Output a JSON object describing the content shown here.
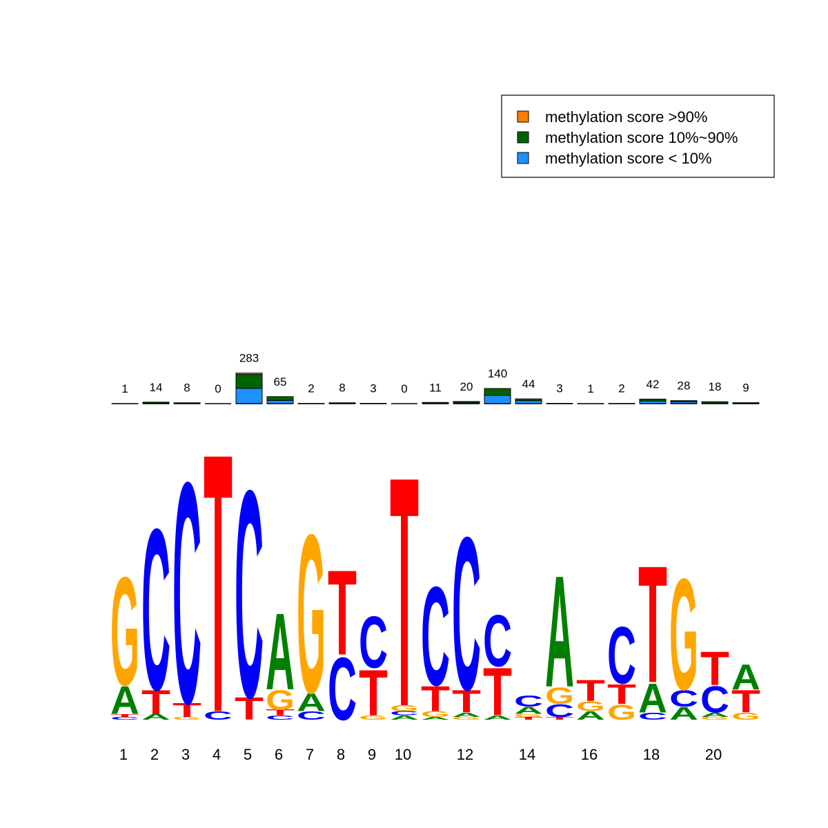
{
  "chart_data": [
    {
      "type": "stacked-bar",
      "legend": "top-right",
      "ylim": [
        0,
        300
      ],
      "totals": [
        1,
        14,
        8,
        0,
        283,
        65,
        2,
        8,
        3,
        0,
        11,
        20,
        140,
        44,
        3,
        1,
        2,
        42,
        28,
        18,
        9
      ],
      "series": [
        {
          "name": "methylation score < 10%",
          "color": "#1e90ff",
          "values": [
            0,
            4,
            3,
            0,
            142,
            30,
            1,
            3,
            1,
            0,
            4,
            8,
            77,
            28,
            1,
            0,
            1,
            25,
            18,
            5,
            3
          ]
        },
        {
          "name": "methylation score 10%~90%",
          "color": "#006400",
          "values": [
            1,
            10,
            5,
            0,
            128,
            35,
            1,
            5,
            2,
            0,
            7,
            12,
            63,
            16,
            2,
            1,
            1,
            17,
            10,
            13,
            6
          ]
        },
        {
          "name": "methylation score >90%",
          "color": "#ff7f00",
          "values": [
            0,
            0,
            0,
            0,
            13,
            0,
            0,
            0,
            0,
            0,
            0,
            0,
            0,
            0,
            0,
            0,
            0,
            0,
            0,
            0,
            0
          ]
        }
      ]
    },
    {
      "type": "logo",
      "ylim": [
        0,
        2
      ],
      "categories": [
        1,
        2,
        3,
        4,
        5,
        6,
        7,
        8,
        9,
        10,
        null,
        12,
        null,
        14,
        null,
        16,
        null,
        18,
        null,
        20,
        null
      ],
      "colors": {
        "A": "#008000",
        "C": "#0000ff",
        "G": "#ffa500",
        "T": "#ff0000"
      },
      "stacks": [
        [
          {
            "letter": "C",
            "value": 0.02
          },
          {
            "letter": "T",
            "value": 0.02
          },
          {
            "letter": "A",
            "value": 0.2
          },
          {
            "letter": "G",
            "value": 0.78
          }
        ],
        [
          {
            "letter": "A",
            "value": 0.04
          },
          {
            "letter": "T",
            "value": 0.17
          },
          {
            "letter": "C",
            "value": 1.16
          }
        ],
        [
          {
            "letter": "G",
            "value": 0.02
          },
          {
            "letter": "T",
            "value": 0.1
          },
          {
            "letter": "C",
            "value": 1.59
          }
        ],
        [
          {
            "letter": "C",
            "value": 0.06
          },
          {
            "letter": "T",
            "value": 1.86
          }
        ],
        [
          {
            "letter": "T",
            "value": 0.16
          },
          {
            "letter": "C",
            "value": 1.49
          }
        ],
        [
          {
            "letter": "C",
            "value": 0.03
          },
          {
            "letter": "T",
            "value": 0.04
          },
          {
            "letter": "G",
            "value": 0.14
          },
          {
            "letter": "A",
            "value": 0.55
          }
        ],
        [
          {
            "letter": "C",
            "value": 0.06
          },
          {
            "letter": "A",
            "value": 0.13
          },
          {
            "letter": "G",
            "value": 1.14
          }
        ],
        [
          {
            "letter": "C",
            "value": 0.45
          },
          {
            "letter": "T",
            "value": 0.61
          }
        ],
        [
          {
            "letter": "G",
            "value": 0.03
          },
          {
            "letter": "T",
            "value": 0.33
          },
          {
            "letter": "C",
            "value": 0.37
          }
        ],
        [
          {
            "letter": "A",
            "value": 0.03
          },
          {
            "letter": "C",
            "value": 0.03
          },
          {
            "letter": "G",
            "value": 0.04
          },
          {
            "letter": "T",
            "value": 1.65
          }
        ],
        [
          {
            "letter": "A",
            "value": 0.02
          },
          {
            "letter": "G",
            "value": 0.04
          },
          {
            "letter": "T",
            "value": 0.18
          },
          {
            "letter": "C",
            "value": 0.71
          }
        ],
        [
          {
            "letter": "G",
            "value": 0.02
          },
          {
            "letter": "A",
            "value": 0.03
          },
          {
            "letter": "T",
            "value": 0.16
          },
          {
            "letter": "C",
            "value": 1.1
          }
        ],
        [
          {
            "letter": "A",
            "value": 0.03
          },
          {
            "letter": "T",
            "value": 0.34
          },
          {
            "letter": "C",
            "value": 0.37
          }
        ],
        [
          {
            "letter": "T",
            "value": 0.02
          },
          {
            "letter": "G",
            "value": 0.02
          },
          {
            "letter": "A",
            "value": 0.05
          },
          {
            "letter": "C",
            "value": 0.08
          }
        ],
        [
          {
            "letter": "T",
            "value": 0.02
          },
          {
            "letter": "C",
            "value": 0.09
          },
          {
            "letter": "G",
            "value": 0.12
          },
          {
            "letter": "A",
            "value": 0.8
          }
        ],
        [
          {
            "letter": "A",
            "value": 0.06
          },
          {
            "letter": "G",
            "value": 0.07
          },
          {
            "letter": "T",
            "value": 0.15
          }
        ],
        [
          {
            "letter": "G",
            "value": 0.11
          },
          {
            "letter": "T",
            "value": 0.14
          },
          {
            "letter": "C",
            "value": 0.41
          }
        ],
        [
          {
            "letter": "C",
            "value": 0.05
          },
          {
            "letter": "A",
            "value": 0.21
          },
          {
            "letter": "T",
            "value": 0.84
          }
        ],
        [
          {
            "letter": "A",
            "value": 0.09
          },
          {
            "letter": "C",
            "value": 0.12
          },
          {
            "letter": "G",
            "value": 0.8
          }
        ],
        [
          {
            "letter": "G",
            "value": 0.02
          },
          {
            "letter": "A",
            "value": 0.03
          },
          {
            "letter": "C",
            "value": 0.19
          },
          {
            "letter": "T",
            "value": 0.24
          }
        ],
        [
          {
            "letter": "G",
            "value": 0.05
          },
          {
            "letter": "T",
            "value": 0.16
          },
          {
            "letter": "A",
            "value": 0.18
          }
        ]
      ]
    }
  ]
}
